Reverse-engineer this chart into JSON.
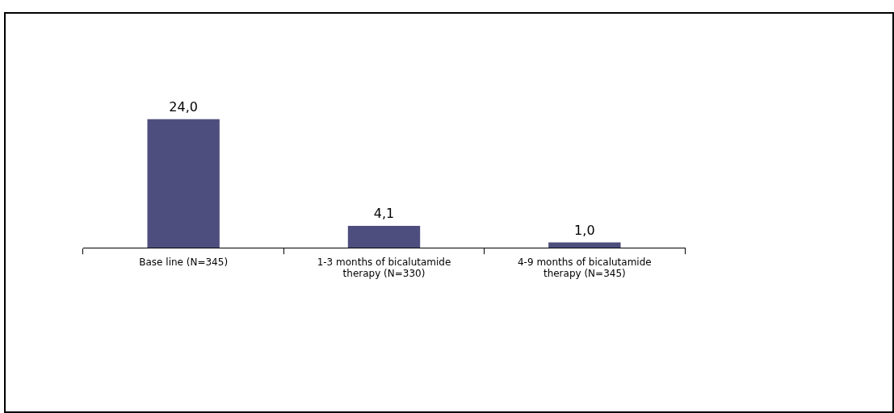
{
  "chart_data": {
    "type": "bar",
    "categories": [
      "Base line (N=345)",
      "1-3 months of bicalutamide therapy (N=330)",
      "4-9 months of bicalutamide therapy (N=345)"
    ],
    "values": [
      24.0,
      4.1,
      1.0
    ],
    "value_labels": [
      "24,0",
      "4,1",
      "1,0"
    ],
    "color": "#4e4e7e",
    "grid": false,
    "legend": false
  }
}
